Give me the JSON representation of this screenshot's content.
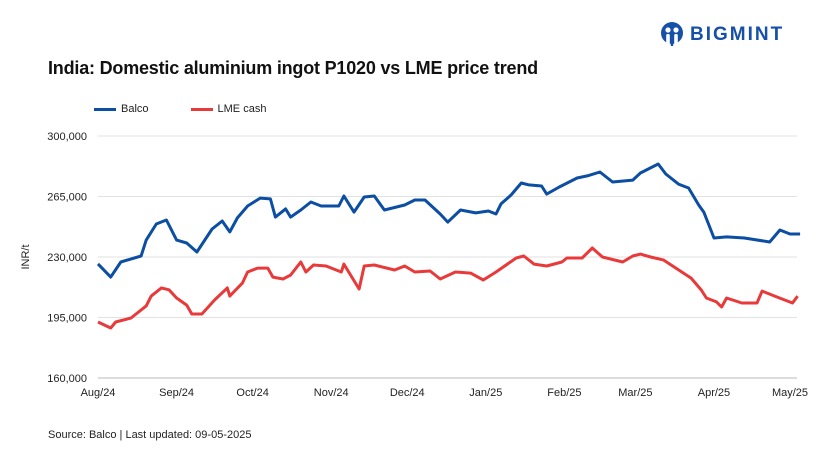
{
  "brand": {
    "name": "BIGMINT",
    "color": "#1650a8"
  },
  "chart_data": {
    "type": "line",
    "title": "India: Domestic aluminium ingot P1020 vs LME price trend",
    "ylabel": "INR/t",
    "xlabel": "",
    "ylim": [
      160000,
      300000
    ],
    "yticks": [
      "160,000",
      "195,000",
      "230,000",
      "265,000",
      "300,000"
    ],
    "ytick_values": [
      160000,
      195000,
      230000,
      265000,
      300000
    ],
    "xticks": [
      "Aug/24",
      "Sep/24",
      "Oct/24",
      "Nov/24",
      "Dec/24",
      "Jan/25",
      "Feb/25",
      "Mar/25",
      "Apr/25",
      "May/25"
    ],
    "xtick_dates": [
      "2024-08-01",
      "2024-09-01",
      "2024-10-01",
      "2024-11-01",
      "2024-12-01",
      "2025-01-01",
      "2025-02-01",
      "2025-03-01",
      "2025-04-01",
      "2025-05-01"
    ],
    "xlim": [
      "2024-08-01",
      "2025-05-01"
    ],
    "grid": "horizontal",
    "legend": "top-left",
    "series": [
      {
        "name": "Balco",
        "color": "#0b4ea2",
        "points": [
          [
            "2024-08-01",
            226000
          ],
          [
            "2024-08-06",
            218400
          ],
          [
            "2024-08-10",
            227100
          ],
          [
            "2024-08-18",
            230600
          ],
          [
            "2024-08-20",
            239800
          ],
          [
            "2024-08-24",
            249100
          ],
          [
            "2024-08-28",
            251400
          ],
          [
            "2024-09-01",
            239800
          ],
          [
            "2024-09-05",
            238100
          ],
          [
            "2024-09-09",
            232900
          ],
          [
            "2024-09-15",
            246200
          ],
          [
            "2024-09-19",
            250800
          ],
          [
            "2024-09-22",
            244500
          ],
          [
            "2024-09-25",
            252600
          ],
          [
            "2024-09-29",
            259500
          ],
          [
            "2024-10-04",
            264100
          ],
          [
            "2024-10-08",
            263600
          ],
          [
            "2024-10-10",
            253100
          ],
          [
            "2024-10-14",
            257800
          ],
          [
            "2024-10-16",
            253100
          ],
          [
            "2024-10-20",
            257200
          ],
          [
            "2024-10-24",
            261800
          ],
          [
            "2024-10-28",
            259500
          ],
          [
            "2024-11-04",
            259500
          ],
          [
            "2024-11-06",
            265300
          ],
          [
            "2024-11-10",
            256000
          ],
          [
            "2024-11-14",
            264700
          ],
          [
            "2024-11-18",
            265300
          ],
          [
            "2024-11-22",
            257200
          ],
          [
            "2024-11-30",
            260100
          ],
          [
            "2024-12-04",
            263000
          ],
          [
            "2024-12-08",
            263000
          ],
          [
            "2024-12-14",
            254900
          ],
          [
            "2024-12-17",
            250200
          ],
          [
            "2024-12-22",
            257200
          ],
          [
            "2024-12-28",
            255500
          ],
          [
            "2025-01-02",
            256600
          ],
          [
            "2025-01-05",
            254900
          ],
          [
            "2025-01-07",
            260700
          ],
          [
            "2025-01-11",
            265900
          ],
          [
            "2025-01-15",
            272800
          ],
          [
            "2025-01-18",
            271700
          ],
          [
            "2025-01-23",
            271100
          ],
          [
            "2025-01-25",
            266400
          ],
          [
            "2025-01-30",
            270500
          ],
          [
            "2025-02-06",
            275700
          ],
          [
            "2025-02-10",
            276900
          ],
          [
            "2025-02-15",
            279200
          ],
          [
            "2025-02-20",
            273400
          ],
          [
            "2025-02-28",
            274500
          ],
          [
            "2025-03-03",
            278600
          ],
          [
            "2025-03-10",
            283800
          ],
          [
            "2025-03-13",
            278000
          ],
          [
            "2025-03-18",
            272200
          ],
          [
            "2025-03-22",
            269900
          ],
          [
            "2025-03-26",
            260100
          ],
          [
            "2025-03-28",
            256000
          ],
          [
            "2025-03-30",
            248500
          ],
          [
            "2025-04-01",
            241000
          ],
          [
            "2025-04-06",
            241600
          ],
          [
            "2025-04-13",
            241000
          ],
          [
            "2025-04-23",
            238700
          ],
          [
            "2025-04-27",
            245600
          ],
          [
            "2025-05-01",
            243300
          ],
          [
            "2025-05-05",
            243300
          ]
        ]
      },
      {
        "name": "LME cash",
        "color": "#e83a3a",
        "points": [
          [
            "2024-08-01",
            192400
          ],
          [
            "2024-08-06",
            188900
          ],
          [
            "2024-08-08",
            192400
          ],
          [
            "2024-08-14",
            194700
          ],
          [
            "2024-08-20",
            201700
          ],
          [
            "2024-08-22",
            207400
          ],
          [
            "2024-08-26",
            212100
          ],
          [
            "2024-08-29",
            211000
          ],
          [
            "2024-09-01",
            206300
          ],
          [
            "2024-09-05",
            202200
          ],
          [
            "2024-09-07",
            197000
          ],
          [
            "2024-09-11",
            197000
          ],
          [
            "2024-09-16",
            205100
          ],
          [
            "2024-09-21",
            212100
          ],
          [
            "2024-09-22",
            207400
          ],
          [
            "2024-09-27",
            215000
          ],
          [
            "2024-09-29",
            221300
          ],
          [
            "2024-10-03",
            223600
          ],
          [
            "2024-10-07",
            223600
          ],
          [
            "2024-10-09",
            218400
          ],
          [
            "2024-10-13",
            217300
          ],
          [
            "2024-10-16",
            219500
          ],
          [
            "2024-10-20",
            227100
          ],
          [
            "2024-10-22",
            221300
          ],
          [
            "2024-10-25",
            225400
          ],
          [
            "2024-10-30",
            224800
          ],
          [
            "2024-11-05",
            221300
          ],
          [
            "2024-11-06",
            225900
          ],
          [
            "2024-11-12",
            211500
          ],
          [
            "2024-11-14",
            224800
          ],
          [
            "2024-11-18",
            225400
          ],
          [
            "2024-11-26",
            222500
          ],
          [
            "2024-11-30",
            224800
          ],
          [
            "2024-12-04",
            221300
          ],
          [
            "2024-12-10",
            221900
          ],
          [
            "2024-12-14",
            217300
          ],
          [
            "2024-12-20",
            221300
          ],
          [
            "2024-12-26",
            220700
          ],
          [
            "2024-12-31",
            216700
          ],
          [
            "2025-01-05",
            221300
          ],
          [
            "2025-01-13",
            229400
          ],
          [
            "2025-01-16",
            230600
          ],
          [
            "2025-01-20",
            225900
          ],
          [
            "2025-01-25",
            224800
          ],
          [
            "2025-01-31",
            227100
          ],
          [
            "2025-02-02",
            229400
          ],
          [
            "2025-02-08",
            229400
          ],
          [
            "2025-02-12",
            235200
          ],
          [
            "2025-02-16",
            230000
          ],
          [
            "2025-02-24",
            227100
          ],
          [
            "2025-02-28",
            230600
          ],
          [
            "2025-03-03",
            231700
          ],
          [
            "2025-03-07",
            230000
          ],
          [
            "2025-03-12",
            228300
          ],
          [
            "2025-03-17",
            223600
          ],
          [
            "2025-03-23",
            217800
          ],
          [
            "2025-03-27",
            210900
          ],
          [
            "2025-03-29",
            206300
          ],
          [
            "2025-04-02",
            204000
          ],
          [
            "2025-04-04",
            201100
          ],
          [
            "2025-04-06",
            206300
          ],
          [
            "2025-04-12",
            203400
          ],
          [
            "2025-04-18",
            203400
          ],
          [
            "2025-04-20",
            210300
          ],
          [
            "2025-04-26",
            206800
          ],
          [
            "2025-05-02",
            203400
          ],
          [
            "2025-05-04",
            207400
          ]
        ]
      }
    ]
  },
  "source": "Source: Balco | Last updated: 09-05-2025"
}
